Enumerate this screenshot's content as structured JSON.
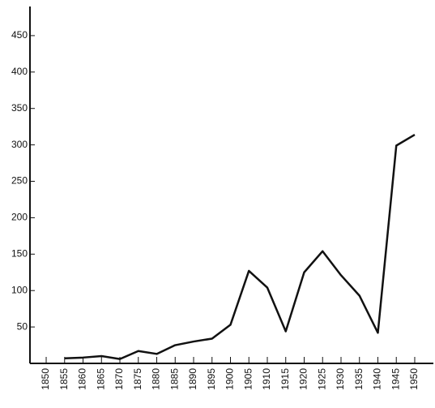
{
  "chart_data": {
    "type": "line",
    "x": [
      1855,
      1860,
      1865,
      1870,
      1875,
      1880,
      1885,
      1890,
      1895,
      1900,
      1905,
      1910,
      1915,
      1920,
      1925,
      1930,
      1935,
      1940,
      1945,
      1950
    ],
    "values": [
      7,
      8,
      10,
      6,
      17,
      13,
      25,
      30,
      34,
      53,
      127,
      104,
      44,
      125,
      154,
      121,
      93,
      42,
      299,
      314
    ],
    "color": "#111111",
    "xlim": [
      1845.6,
      1955.5
    ],
    "xticks": [
      1850,
      1855,
      1860,
      1865,
      1870,
      1875,
      1880,
      1885,
      1890,
      1895,
      1900,
      1905,
      1910,
      1915,
      1920,
      1925,
      1930,
      1935,
      1940,
      1945,
      1950
    ],
    "ylim": [
      0,
      490
    ],
    "yticks": [
      50,
      100,
      150,
      200,
      250,
      300,
      350,
      400,
      450
    ],
    "grid": false
  }
}
